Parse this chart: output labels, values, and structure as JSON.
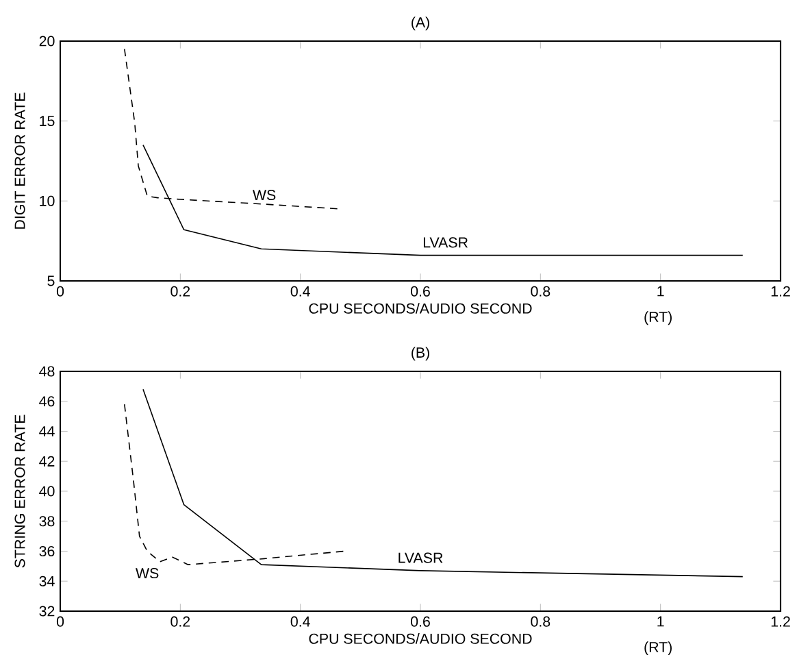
{
  "chart_data": [
    {
      "type": "line",
      "title": "(A)",
      "xlabel": "CPU SECONDS/AUDIO SECOND",
      "ylabel": "DIGIT ERROR RATE",
      "annotations": [
        "(RT)"
      ],
      "xlim": [
        0,
        1.2
      ],
      "xticks": [
        0,
        0.2,
        0.4,
        0.6,
        0.8,
        1,
        1.2
      ],
      "ylim": [
        5,
        20
      ],
      "yticks": [
        5,
        10,
        15,
        20
      ],
      "grid": false,
      "legend": false,
      "marker": "none",
      "series": [
        {
          "name": "WS",
          "color": "#000000",
          "line_style": "dashed",
          "x": [
            0.107,
            0.124,
            0.13,
            0.145,
            0.162,
            0.2,
            0.34,
            0.466
          ],
          "values": [
            19.5,
            14.9,
            12.2,
            10.3,
            10.2,
            10.1,
            9.8,
            9.5
          ]
        },
        {
          "name": "LVASR",
          "color": "#000000",
          "line_style": "solid",
          "x": [
            0.138,
            0.206,
            0.335,
            0.6,
            1.137
          ],
          "values": [
            13.5,
            8.2,
            7.0,
            6.6,
            6.6
          ]
        }
      ]
    },
    {
      "type": "line",
      "title": "(B)",
      "xlabel": "CPU SECONDS/AUDIO SECOND",
      "ylabel": "STRING ERROR RATE",
      "annotations": [
        "(RT)"
      ],
      "xlim": [
        0,
        1.2
      ],
      "xticks": [
        0,
        0.2,
        0.4,
        0.6,
        0.8,
        1,
        1.2
      ],
      "ylim": [
        32,
        48
      ],
      "yticks": [
        32,
        34,
        36,
        38,
        40,
        42,
        44,
        46,
        48
      ],
      "grid": false,
      "legend": false,
      "marker": "none",
      "series": [
        {
          "name": "WS",
          "color": "#000000",
          "line_style": "dashed",
          "x": [
            0.107,
            0.122,
            0.132,
            0.145,
            0.166,
            0.187,
            0.213,
            0.34,
            0.473
          ],
          "values": [
            45.8,
            40.7,
            37.0,
            36.0,
            35.3,
            35.6,
            35.1,
            35.5,
            36.0
          ]
        },
        {
          "name": "LVASR",
          "color": "#000000",
          "line_style": "solid",
          "x": [
            0.138,
            0.206,
            0.335,
            0.6,
            1.137
          ],
          "values": [
            46.8,
            39.1,
            35.1,
            34.7,
            34.3
          ]
        }
      ]
    }
  ]
}
